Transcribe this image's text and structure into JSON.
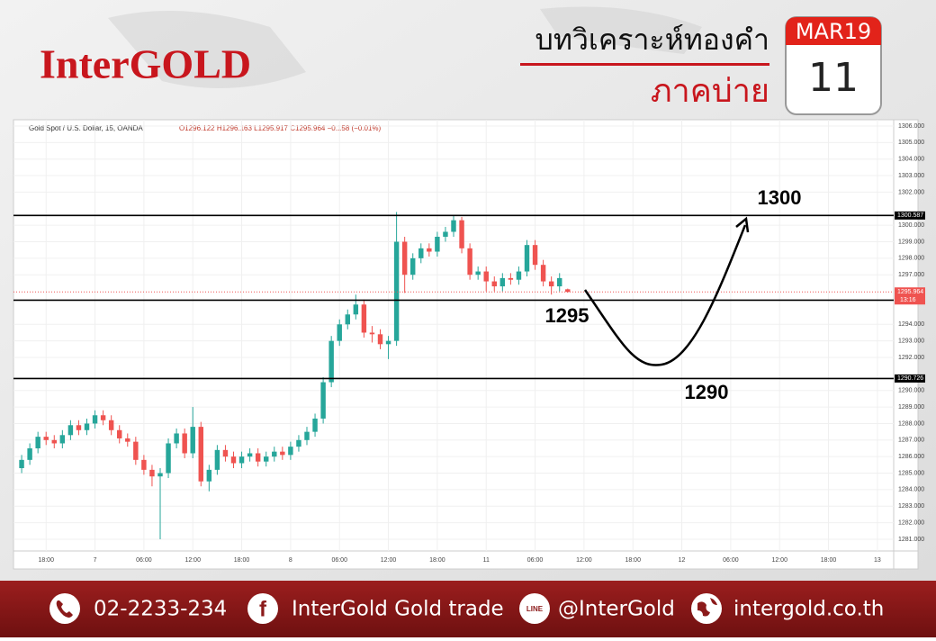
{
  "header": {
    "brand": "InterGOLD",
    "title": "บทวิเคราะห์ทองคำ",
    "subtitle": "ภาคบ่าย",
    "calendar_month": "MAR19",
    "calendar_day": "11"
  },
  "chart_data": {
    "type": "candlestick",
    "symbol": "Gold Spot / U.S. Dollar, 15, OANDA",
    "ohlc_summary": "O1296.122 H1296.163 L1295.917 C1295.964 −0.158 (−0.01%)",
    "up_color": "#26a69a",
    "down_color": "#ef5350",
    "x": [
      -3,
      -2,
      -1,
      0,
      1,
      2,
      3,
      4,
      5,
      6,
      7,
      8,
      9,
      10,
      11,
      12,
      13,
      14,
      15,
      16,
      17,
      18,
      19,
      20,
      21,
      22,
      23,
      24,
      25,
      26,
      27,
      28,
      29,
      30,
      31,
      32,
      33,
      34,
      35,
      36,
      37,
      38,
      39,
      40,
      41,
      42,
      43,
      44,
      45,
      46,
      47,
      48,
      49,
      50,
      51,
      52,
      53,
      54,
      55,
      56,
      57,
      58,
      59,
      60,
      61,
      62,
      63,
      64
    ],
    "open": [
      1285.3,
      1285.8,
      1286.5,
      1287.2,
      1287.0,
      1286.8,
      1287.3,
      1287.9,
      1287.6,
      1288.0,
      1288.5,
      1288.2,
      1287.6,
      1287.1,
      1286.9,
      1285.8,
      1285.2,
      1284.8,
      1285.0,
      1286.8,
      1287.4,
      1286.2,
      1287.8,
      1284.5,
      1285.2,
      1286.4,
      1286.0,
      1285.6,
      1286.0,
      1286.2,
      1285.7,
      1286.0,
      1286.3,
      1286.1,
      1286.6,
      1287.0,
      1287.5,
      1288.3,
      1290.5,
      1293.0,
      1294.0,
      1294.6,
      1295.2,
      1293.5,
      1293.4,
      1292.8,
      1293.0,
      1299.0,
      1297.0,
      1298.0,
      1298.6,
      1298.4,
      1299.3,
      1299.6,
      1300.3,
      1298.6,
      1297.0,
      1297.2,
      1296.6,
      1296.3,
      1296.8,
      1296.7,
      1297.2,
      1298.8,
      1297.6,
      1296.6,
      1296.3,
      1296.122
    ],
    "high": [
      1286.1,
      1286.8,
      1287.5,
      1287.5,
      1287.3,
      1287.6,
      1288.2,
      1288.2,
      1288.3,
      1288.8,
      1288.8,
      1288.5,
      1287.9,
      1287.4,
      1287.2,
      1286.1,
      1285.5,
      1285.3,
      1287.1,
      1287.7,
      1287.7,
      1289.0,
      1288.1,
      1285.5,
      1286.7,
      1286.7,
      1286.3,
      1286.3,
      1286.5,
      1286.5,
      1286.3,
      1286.6,
      1286.6,
      1286.9,
      1287.3,
      1287.8,
      1288.6,
      1290.8,
      1293.3,
      1294.3,
      1294.9,
      1295.8,
      1295.5,
      1293.9,
      1293.7,
      1293.3,
      1300.8,
      1299.3,
      1298.3,
      1298.9,
      1298.9,
      1299.6,
      1299.9,
      1300.6,
      1300.5,
      1298.9,
      1297.5,
      1297.5,
      1296.9,
      1297.1,
      1297.1,
      1297.5,
      1299.1,
      1299.1,
      1297.9,
      1296.9,
      1297.1,
      1296.163
    ],
    "low": [
      1285.0,
      1285.5,
      1286.2,
      1286.7,
      1286.5,
      1286.5,
      1287.0,
      1287.3,
      1287.3,
      1287.7,
      1287.9,
      1287.3,
      1286.8,
      1286.6,
      1285.5,
      1284.9,
      1284.2,
      1281.0,
      1284.7,
      1286.5,
      1285.9,
      1285.9,
      1284.2,
      1283.9,
      1284.9,
      1285.7,
      1285.3,
      1285.3,
      1285.7,
      1285.4,
      1285.4,
      1285.7,
      1285.8,
      1285.8,
      1286.3,
      1286.7,
      1287.2,
      1288.0,
      1290.2,
      1292.7,
      1293.7,
      1294.3,
      1293.2,
      1292.9,
      1292.5,
      1291.9,
      1292.7,
      1295.9,
      1296.7,
      1297.7,
      1298.1,
      1298.1,
      1299.0,
      1299.3,
      1298.3,
      1296.7,
      1296.7,
      1296.0,
      1296.0,
      1296.0,
      1296.4,
      1296.4,
      1296.9,
      1297.3,
      1296.3,
      1295.8,
      1296.0,
      1295.917
    ],
    "close": [
      1285.8,
      1286.5,
      1287.2,
      1287.0,
      1286.8,
      1287.3,
      1287.9,
      1287.6,
      1288.0,
      1288.5,
      1288.2,
      1287.6,
      1287.1,
      1286.9,
      1285.8,
      1285.2,
      1284.8,
      1285.0,
      1286.8,
      1287.4,
      1286.2,
      1287.8,
      1284.5,
      1285.2,
      1286.4,
      1286.0,
      1285.6,
      1286.0,
      1286.2,
      1285.7,
      1286.0,
      1286.3,
      1286.1,
      1286.6,
      1287.0,
      1287.5,
      1288.3,
      1290.5,
      1293.0,
      1294.0,
      1294.6,
      1295.2,
      1293.5,
      1293.4,
      1292.8,
      1293.0,
      1299.0,
      1297.0,
      1298.0,
      1298.6,
      1298.4,
      1299.3,
      1299.6,
      1300.3,
      1298.6,
      1297.0,
      1297.2,
      1296.6,
      1296.3,
      1296.8,
      1296.7,
      1297.2,
      1298.8,
      1297.6,
      1296.6,
      1296.3,
      1296.8,
      1295.964
    ],
    "xlim": [
      -4,
      104
    ],
    "xticks": [
      {
        "value": 0,
        "label": "18:00"
      },
      {
        "value": 6,
        "label": "7"
      },
      {
        "value": 12,
        "label": "06:00"
      },
      {
        "value": 18,
        "label": "12:00"
      },
      {
        "value": 24,
        "label": "18:00"
      },
      {
        "value": 30,
        "label": "8"
      },
      {
        "value": 36,
        "label": "06:00"
      },
      {
        "value": 42,
        "label": "12:00"
      },
      {
        "value": 48,
        "label": "18:00"
      },
      {
        "value": 54,
        "label": "11"
      },
      {
        "value": 60,
        "label": "06:00"
      },
      {
        "value": 66,
        "label": "12:00"
      },
      {
        "value": 72,
        "label": "18:00"
      },
      {
        "value": 78,
        "label": "12"
      },
      {
        "value": 84,
        "label": "06:00"
      },
      {
        "value": 90,
        "label": "12:00"
      },
      {
        "value": 96,
        "label": "18:00"
      },
      {
        "value": 102,
        "label": "13"
      }
    ],
    "ylim": [
      1280.29,
      1306.38
    ],
    "yticks": [
      {
        "value": 1281,
        "label": "1281.000"
      },
      {
        "value": 1282,
        "label": "1282.000"
      },
      {
        "value": 1283,
        "label": "1283.000"
      },
      {
        "value": 1284,
        "label": "1284.000"
      },
      {
        "value": 1285,
        "label": "1285.000"
      },
      {
        "value": 1286,
        "label": "1286.000"
      },
      {
        "value": 1287,
        "label": "1287.000"
      },
      {
        "value": 1288,
        "label": "1288.000"
      },
      {
        "value": 1289,
        "label": "1289.000"
      },
      {
        "value": 1290,
        "label": "1290.000"
      },
      {
        "value": 1292,
        "label": "1292.000"
      },
      {
        "value": 1293,
        "label": "1293.000"
      },
      {
        "value": 1294,
        "label": "1294.000"
      },
      {
        "value": 1297,
        "label": "1297.000"
      },
      {
        "value": 1298,
        "label": "1298.000"
      },
      {
        "value": 1299,
        "label": "1299.000"
      },
      {
        "value": 1300,
        "label": "1300.000"
      },
      {
        "value": 1302,
        "label": "1302.000"
      },
      {
        "value": 1303,
        "label": "1303.000"
      },
      {
        "value": 1304,
        "label": "1304.000"
      },
      {
        "value": 1305,
        "label": "1305.000"
      },
      {
        "value": 1306,
        "label": "1306.000"
      }
    ],
    "levels": [
      1300.587,
      1295.461,
      1290.726
    ],
    "current_price": 1295.964,
    "current_time": "13:16",
    "current_color": "#ef5350",
    "annotations": [
      "1300",
      "1295",
      "1290"
    ]
  },
  "footer": {
    "phone": "02-2233-234",
    "facebook_icon": "f",
    "facebook": "InterGold Gold trade",
    "line_icon": "LINE",
    "line": "@InterGold",
    "website": "intergold.co.th"
  }
}
